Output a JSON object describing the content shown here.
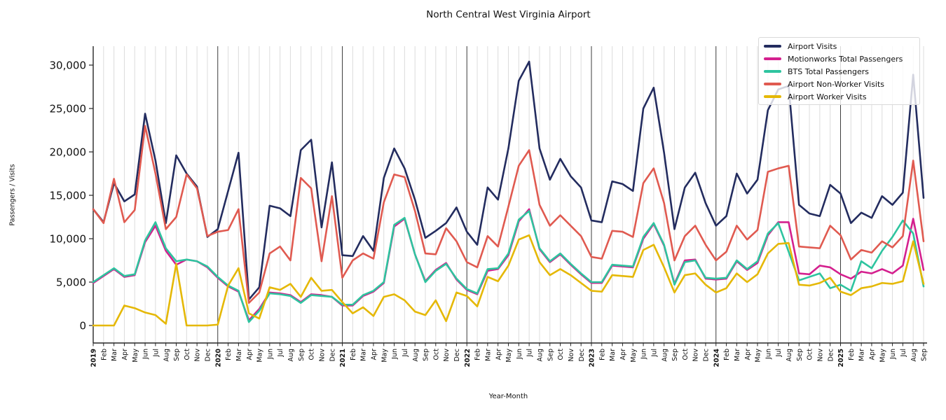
{
  "title": "North Central West Virginia Airport",
  "xlabel": "Year-Month",
  "ylabel": "Passengers / Visits",
  "chart_data": {
    "type": "line",
    "title": "North Central West Virginia Airport",
    "xlabel": "Year-Month",
    "ylabel": "Passengers / Visits",
    "ylim": [
      0,
      32200
    ],
    "yticks": [
      0,
      5000,
      10000,
      15000,
      20000,
      25000,
      30000
    ],
    "grid": "vertical monthly gridlines, dark line at each January",
    "legend_position": "upper right",
    "x_labels": [
      "2019",
      "Feb",
      "Mar",
      "Apr",
      "May",
      "Jun",
      "Jul",
      "Aug",
      "Sep",
      "Oct",
      "Nov",
      "Dec",
      "2020",
      "Feb",
      "Mar",
      "Apr",
      "May",
      "Jun",
      "Jul",
      "Aug",
      "Sep",
      "Oct",
      "Nov",
      "Dec",
      "2021",
      "Feb",
      "Mar",
      "Apr",
      "May",
      "Jun",
      "Jul",
      "Aug",
      "Sep",
      "Oct",
      "Nov",
      "Dec",
      "2022",
      "Feb",
      "Mar",
      "Apr",
      "May",
      "Jun",
      "Jul",
      "Aug",
      "Sep",
      "Oct",
      "Nov",
      "Dec",
      "2023",
      "Feb",
      "Mar",
      "Apr",
      "May",
      "Jun",
      "Jul",
      "Aug",
      "Sep",
      "Oct",
      "Nov",
      "Dec",
      "2024",
      "Feb",
      "Mar",
      "Apr",
      "May",
      "Jun",
      "Jul",
      "Aug",
      "Sep",
      "Oct",
      "Nov",
      "Dec",
      "2025",
      "Feb",
      "Mar",
      "Apr",
      "May",
      "Jun",
      "Jul",
      "Aug",
      "Sep"
    ],
    "series": [
      {
        "name": "Airport Visits",
        "color": "#232c5f",
        "values": [
          13400,
          11900,
          16400,
          14300,
          15100,
          24400,
          19000,
          11800,
          19600,
          17500,
          16000,
          10200,
          11100,
          15500,
          19900,
          3000,
          4400,
          13800,
          13500,
          12600,
          20200,
          21400,
          11300,
          18800,
          8100,
          8000,
          10300,
          8600,
          17000,
          20400,
          18100,
          14500,
          10100,
          10900,
          11800,
          13600,
          10800,
          9300,
          15900,
          14500,
          20400,
          28200,
          30400,
          20400,
          16800,
          19200,
          17200,
          15900,
          12100,
          11900,
          16600,
          16300,
          15500,
          25000,
          27400,
          19900,
          11100,
          15900,
          17600,
          14100,
          11500,
          12600,
          17500,
          15200,
          16800,
          24800,
          27200,
          27600,
          13900,
          12900,
          12600,
          16200,
          15200,
          11800,
          13000,
          12400,
          14900,
          13900,
          15300,
          28900,
          14700
        ]
      },
      {
        "name": "Motionworks Total Passengers",
        "color": "#d4208e",
        "values": [
          4900,
          5700,
          6500,
          5600,
          5800,
          9600,
          11500,
          8600,
          7000,
          7600,
          7400,
          6700,
          5500,
          4500,
          3900,
          600,
          1900,
          3800,
          3700,
          3500,
          2700,
          3600,
          3500,
          3300,
          2300,
          2300,
          3400,
          3900,
          4900,
          11400,
          12300,
          8200,
          5100,
          6400,
          7200,
          5300,
          4100,
          3600,
          6300,
          6500,
          8100,
          12000,
          13400,
          8800,
          7300,
          8200,
          7000,
          5900,
          4900,
          4900,
          6900,
          6800,
          6700,
          10000,
          11700,
          9200,
          4800,
          7500,
          7600,
          5400,
          5300,
          5400,
          7400,
          6400,
          7200,
          10400,
          11900,
          11900,
          6000,
          5900,
          6900,
          6700,
          5900,
          5400,
          6200,
          6000,
          6500,
          6000,
          6900,
          12300,
          6400
        ]
      },
      {
        "name": "BTS Total Passengers",
        "color": "#2ec49f",
        "values": [
          5000,
          5800,
          6600,
          5700,
          5900,
          9800,
          11900,
          8900,
          7400,
          7600,
          7400,
          6800,
          5600,
          4600,
          4000,
          400,
          1700,
          3700,
          3600,
          3400,
          2600,
          3500,
          3400,
          3300,
          2400,
          2400,
          3500,
          4000,
          5000,
          11600,
          12400,
          8200,
          5000,
          6300,
          7100,
          5400,
          4200,
          3700,
          6500,
          6600,
          8300,
          12200,
          13200,
          8900,
          7400,
          8300,
          7100,
          6000,
          5000,
          5000,
          7000,
          6900,
          6800,
          10200,
          11800,
          9300,
          4700,
          7300,
          7500,
          5500,
          5400,
          5500,
          7500,
          6500,
          7400,
          10600,
          11800,
          8500,
          5200,
          5600,
          6000,
          4300,
          4700,
          4000,
          7400,
          6600,
          8600,
          10200,
          12100,
          10600,
          4500
        ]
      },
      {
        "name": "Airport Non-Worker Visits",
        "color": "#e05a50",
        "values": [
          13400,
          11800,
          16900,
          11900,
          13300,
          23000,
          17500,
          11100,
          12500,
          17400,
          15800,
          10300,
          10800,
          11000,
          13400,
          2600,
          3800,
          8300,
          9100,
          7500,
          17000,
          15800,
          7400,
          14900,
          5500,
          7500,
          8300,
          7700,
          14200,
          17400,
          17100,
          13200,
          8300,
          8200,
          11200,
          9700,
          7300,
          6700,
          10300,
          9100,
          13700,
          18400,
          20200,
          13900,
          11500,
          12700,
          11500,
          10300,
          7900,
          7700,
          10900,
          10800,
          10200,
          16400,
          18100,
          14100,
          7500,
          10300,
          11500,
          9300,
          7500,
          8500,
          11500,
          9900,
          11000,
          17700,
          18100,
          18400,
          9100,
          9000,
          8900,
          11500,
          10400,
          7600,
          8700,
          8400,
          9700,
          9000,
          10300,
          19000,
          9700
        ]
      },
      {
        "name": "Airport Worker Visits",
        "color": "#e5b806",
        "values": [
          0,
          0,
          0,
          2300,
          2000,
          1500,
          1200,
          200,
          7100,
          0,
          0,
          0,
          100,
          4600,
          6600,
          1400,
          800,
          4400,
          4100,
          4800,
          3300,
          5500,
          4000,
          4100,
          2700,
          1400,
          2100,
          1100,
          3300,
          3600,
          2900,
          1600,
          1200,
          2900,
          500,
          3800,
          3400,
          2200,
          5600,
          5100,
          6900,
          9900,
          10400,
          7300,
          5800,
          6500,
          5800,
          4900,
          4000,
          3900,
          5800,
          5700,
          5600,
          8700,
          9300,
          6700,
          3800,
          5800,
          6000,
          4700,
          3800,
          4300,
          6000,
          5000,
          5900,
          8300,
          9400,
          9500,
          4700,
          4600,
          4900,
          5500,
          3900,
          3500,
          4300,
          4500,
          4900,
          4800,
          5100,
          9700,
          4800
        ]
      }
    ]
  }
}
